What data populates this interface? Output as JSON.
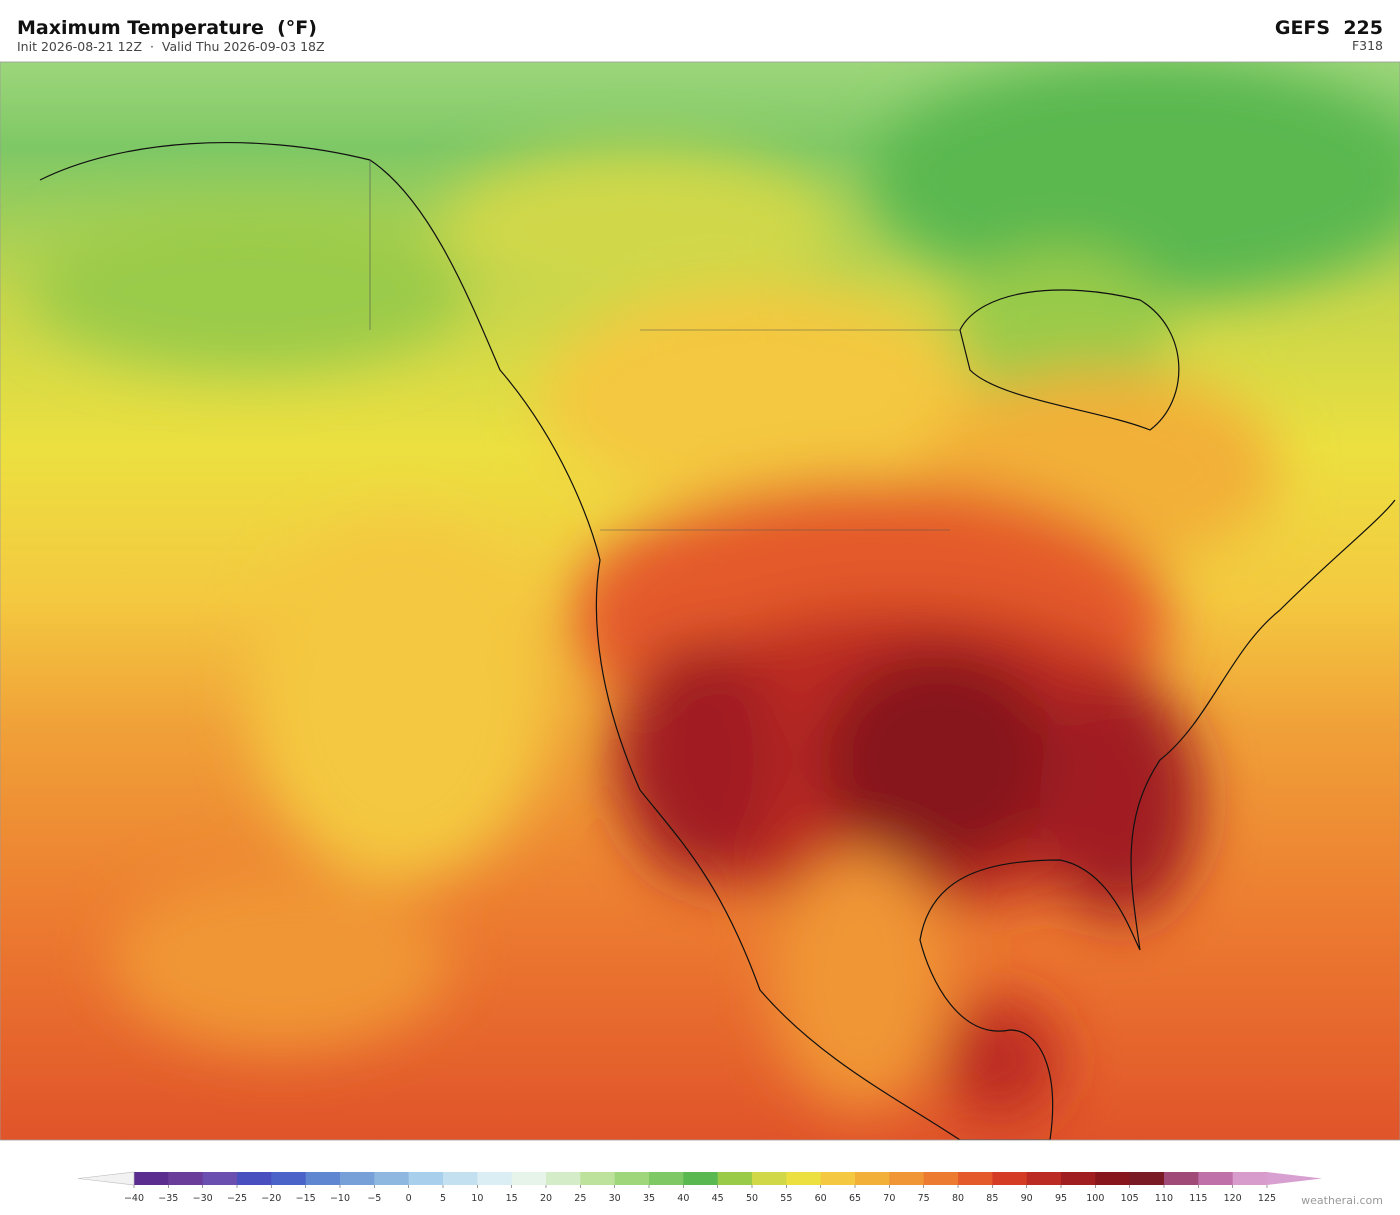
{
  "header": {
    "title": "Maximum Temperature  (°F)",
    "subtitle": "Init 2026-08-21 12Z  ·  Valid Thu 2026-09-03 18Z",
    "model": "GEFS  225",
    "forecast_hour": "F318"
  },
  "colorbar": {
    "ticks": [
      {
        "value": -40,
        "label": "−40"
      },
      {
        "value": -35,
        "label": "−35"
      },
      {
        "value": -30,
        "label": "−30"
      },
      {
        "value": -25,
        "label": "−25"
      },
      {
        "value": -20,
        "label": "−20"
      },
      {
        "value": -15,
        "label": "−15"
      },
      {
        "value": -10,
        "label": "−10"
      },
      {
        "value": -5,
        "label": "−5"
      },
      0,
      5,
      10,
      15,
      20,
      25,
      30,
      35,
      40,
      45,
      50,
      55,
      60,
      65,
      70,
      75,
      80,
      85,
      90,
      95,
      100,
      105,
      110,
      115,
      120,
      125
    ],
    "colors": [
      "#5a2d8f",
      "#6a3d9a",
      "#6b4fb0",
      "#4a4fc0",
      "#4a63c8",
      "#5f86d0",
      "#78a0d8",
      "#8fb8e0",
      "#a8d0ec",
      "#c2e0f0",
      "#daeef4",
      "#e6f4ea",
      "#d4ecc8",
      "#bce29c",
      "#9fd67c",
      "#7ec866",
      "#5ab850",
      "#9acb48",
      "#d0d848",
      "#ece040",
      "#f4c840",
      "#f2b038",
      "#f09636",
      "#ec7a30",
      "#e45a2a",
      "#d43c26",
      "#bc2a24",
      "#a01e20",
      "#86161c",
      "#7a1a24",
      "#a04a78",
      "#c070a8",
      "#d89ccc"
    ],
    "under_color": "#f2f2f2",
    "over_color": "#d8a0d0"
  },
  "footer": {
    "credit": "weatherai.com"
  }
}
